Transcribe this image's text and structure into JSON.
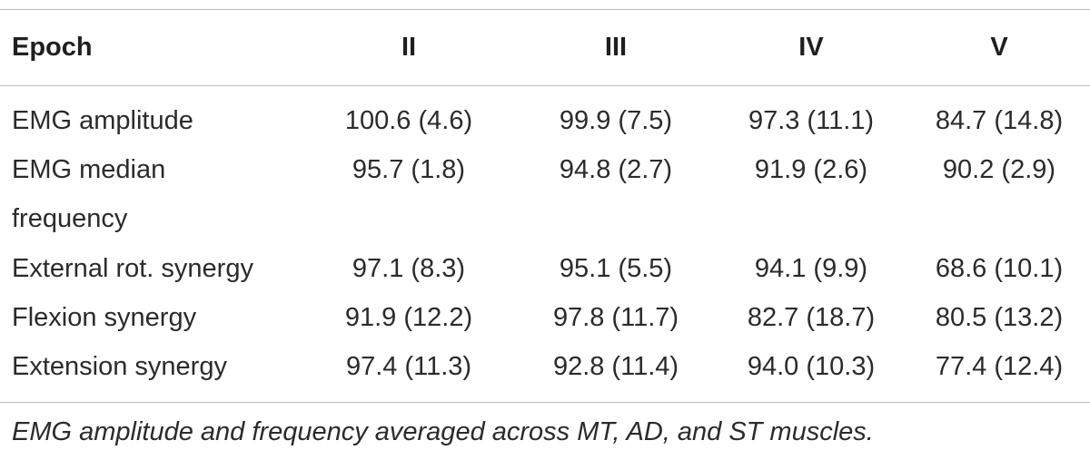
{
  "table": {
    "headers": [
      "Epoch",
      "II",
      "III",
      "IV",
      "V"
    ],
    "rows": [
      {
        "label": "EMG amplitude",
        "label2": "",
        "values": [
          "100.6 (4.6)",
          "99.9 (7.5)",
          "97.3 (11.1)",
          "84.7 (14.8)"
        ]
      },
      {
        "label": "EMG median",
        "label2": "frequency",
        "values": [
          "95.7 (1.8)",
          "94.8 (2.7)",
          "91.9 (2.6)",
          "90.2 (2.9)"
        ]
      },
      {
        "label": "External rot. synergy",
        "label2": "",
        "values": [
          "97.1 (8.3)",
          "95.1 (5.5)",
          "94.1 (9.9)",
          "68.6 (10.1)"
        ]
      },
      {
        "label": "Flexion synergy",
        "label2": "",
        "values": [
          "91.9 (12.2)",
          "97.8 (11.7)",
          "82.7 (18.7)",
          "80.5 (13.2)"
        ]
      },
      {
        "label": "Extension synergy",
        "label2": "",
        "values": [
          "97.4 (11.3)",
          "92.8 (11.4)",
          "94.0 (10.3)",
          "77.4 (12.4)"
        ]
      }
    ]
  },
  "footnote": "EMG amplitude and frequency averaged across MT, AD, and ST muscles."
}
